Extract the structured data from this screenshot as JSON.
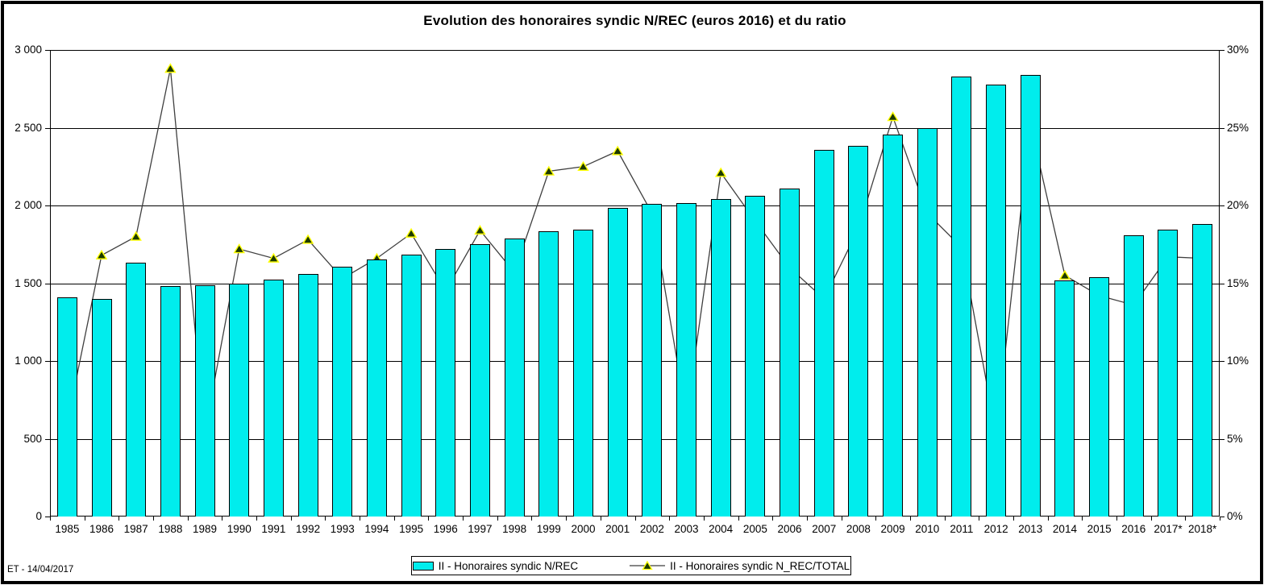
{
  "title": "Evolution des honoraires syndic N/REC (euros 2016) et du ratio",
  "footer": "ET -  14/04/2017",
  "colors": {
    "bar_fill": "#00EDED",
    "bar_border": "#000000",
    "line_color": "#3F3F3F",
    "marker_fill": "#1C3A00",
    "marker_edge": "#FFFF00",
    "grid_color": "#000000"
  },
  "legend": {
    "bar_label": "II - Honoraires  syndic N/REC",
    "line_label": "II - Honoraires  syndic N_REC/TOTAL"
  },
  "chart_data": {
    "type": "bar",
    "title": "Evolution des honoraires syndic N/REC (euros 2016) et du ratio",
    "categories": [
      "1985",
      "1986",
      "1987",
      "1988",
      "1989",
      "1990",
      "1991",
      "1992",
      "1993",
      "1994",
      "1995",
      "1996",
      "1997",
      "1998",
      "1999",
      "2000",
      "2001",
      "2002",
      "2003",
      "2004",
      "2005",
      "2006",
      "2007",
      "2008",
      "2009",
      "2010",
      "2011",
      "2012",
      "2013",
      "2014",
      "2015",
      "2016",
      "2017*",
      "2018*"
    ],
    "series": [
      {
        "name": "II - Honoraires syndic N/REC",
        "type": "bar",
        "axis": "left",
        "values": [
          1410,
          1400,
          1630,
          1480,
          1485,
          1495,
          1525,
          1560,
          1605,
          1655,
          1685,
          1720,
          1750,
          1790,
          1835,
          1845,
          1985,
          2010,
          2015,
          2040,
          2060,
          2110,
          2360,
          2385,
          2455,
          2495,
          2830,
          2775,
          2840,
          1520,
          1540,
          1810,
          1845,
          1880
        ]
      },
      {
        "name": "II - Honoraires syndic N_REC/TOTAL",
        "type": "line",
        "axis": "right",
        "unit": "%",
        "values": [
          6.0,
          16.8,
          18.0,
          28.8,
          5.4,
          17.2,
          16.6,
          17.8,
          15.3,
          16.6,
          18.2,
          14.5,
          18.4,
          15.7,
          22.2,
          22.5,
          23.5,
          19.5,
          6.5,
          22.1,
          19.0,
          16.0,
          14.0,
          18.5,
          25.7,
          19.5,
          17.3,
          5.3,
          25.2,
          15.5,
          14.2,
          13.6,
          16.7,
          16.6
        ]
      }
    ],
    "left_axis": {
      "min": 0,
      "max": 3000,
      "tick_step": 500,
      "tick_labels": [
        "0",
        "500",
        "1 000",
        "1 500",
        "2 000",
        "2 500",
        "3 000"
      ]
    },
    "right_axis": {
      "min": 0,
      "max": 30,
      "tick_step": 5,
      "tick_labels": [
        "0%",
        "5%",
        "10%",
        "15%",
        "20%",
        "25%",
        "30%"
      ]
    },
    "grid": true,
    "legend_position": "bottom"
  }
}
